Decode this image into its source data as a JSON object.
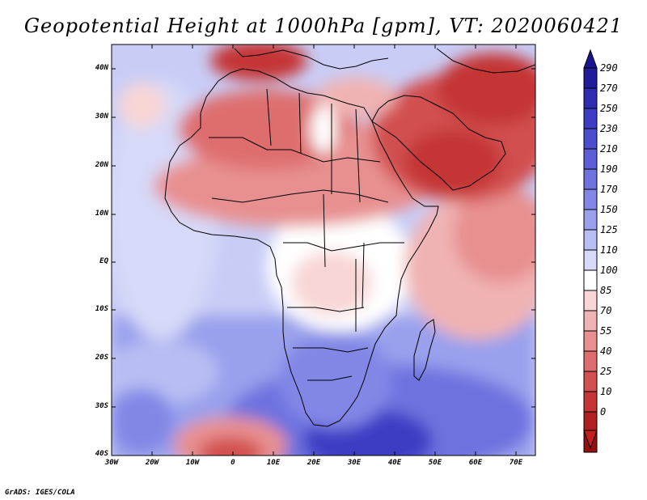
{
  "title": "Geopotential Height at 1000hPa [gpm], VT: 2020060421",
  "credit": "GrADS: IGES/COLA",
  "map": {
    "variable": "Geopotential Height at 1000hPa",
    "units": "gpm",
    "valid_time": "2020060421",
    "lat_labels": [
      "40N",
      "30N",
      "20N",
      "10N",
      "EQ",
      "10S",
      "20S",
      "30S",
      "40S"
    ],
    "lon_labels": [
      "30W",
      "20W",
      "10W",
      "0",
      "10E",
      "20E",
      "30E",
      "40E",
      "50E",
      "60E",
      "70E"
    ]
  },
  "colorbar": {
    "labels": [
      "290",
      "270",
      "250",
      "230",
      "210",
      "190",
      "170",
      "150",
      "125",
      "110",
      "100",
      "85",
      "70",
      "55",
      "40",
      "25",
      "10",
      "0"
    ],
    "colors": [
      "#221c9c",
      "#2f2cb2",
      "#3c3cc4",
      "#4b4dcf",
      "#5c5fd8",
      "#6e72df",
      "#8287e6",
      "#9aa0ec",
      "#b8bdf3",
      "#d6d9f8",
      "#ffffff",
      "#f8d6d6",
      "#f0b3b3",
      "#e89090",
      "#de6e6e",
      "#d25050",
      "#c43636",
      "#b02020",
      "#951010"
    ]
  }
}
